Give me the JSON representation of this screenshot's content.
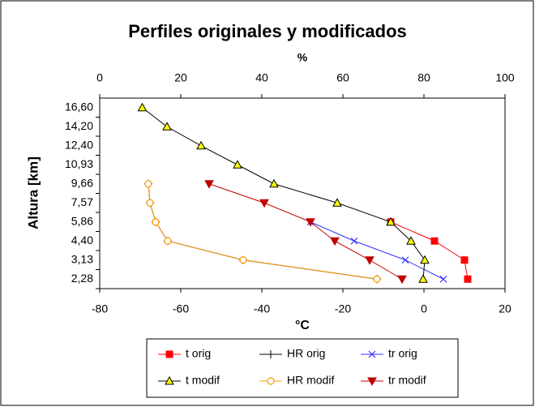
{
  "chart_data": {
    "type": "line",
    "title": "Perfiles originales y modificados",
    "x_label": "°C",
    "x2_label": "%",
    "y_label": "Altura [km]",
    "categories": [
      "2,28",
      "3,13",
      "4,40",
      "5,86",
      "7,57",
      "9,66",
      "10,93",
      "12,40",
      "14,20",
      "16,60"
    ],
    "xlim": [
      -80,
      20
    ],
    "xticks": [
      -80,
      -60,
      -40,
      -20,
      0,
      20
    ],
    "x2lim": [
      0,
      100
    ],
    "x2ticks": [
      0,
      20,
      40,
      60,
      80,
      100
    ],
    "series": [
      {
        "name": "t orig",
        "color": "#ff0000",
        "marker": "square",
        "marker_fill": "#ff0000",
        "values": [
          10.8,
          10,
          2.6,
          -8.2,
          null,
          null,
          null,
          null,
          null,
          null
        ]
      },
      {
        "name": "HR orig",
        "color": "#000000",
        "marker": "plus",
        "marker_fill": "#000000",
        "axis": "x2",
        "values": [
          68.4,
          35.4,
          16.8,
          13.8,
          12.4,
          12,
          null,
          null,
          null,
          null
        ]
      },
      {
        "name": "tr orig",
        "color": "#3333ff",
        "marker": "x",
        "marker_fill": "#3333ff",
        "values": [
          4.8,
          -4.6,
          -17.2,
          -28,
          null,
          null,
          null,
          null,
          null,
          null
        ]
      },
      {
        "name": "t modif",
        "color": "#000000",
        "marker": "triangle",
        "marker_fill": "#ffff00",
        "values": [
          -0.2,
          0.2,
          -3.2,
          -8.2,
          -21.4,
          -37,
          -46,
          -55,
          -63.4,
          -69.5
        ]
      },
      {
        "name": "HR modif",
        "color": "#ff9900",
        "marker": "circle",
        "marker_fill": "#ffffff",
        "axis": "x2",
        "values": [
          68.4,
          35.4,
          16.8,
          13.8,
          12.4,
          12,
          null,
          null,
          null,
          null
        ]
      },
      {
        "name": "tr modif",
        "color": "#c00000",
        "marker": "triangle-down",
        "marker_fill": "#c00000",
        "values": [
          -5.4,
          -13.4,
          -22,
          -28,
          -39.4,
          -53,
          null,
          null,
          null,
          null
        ]
      }
    ]
  }
}
